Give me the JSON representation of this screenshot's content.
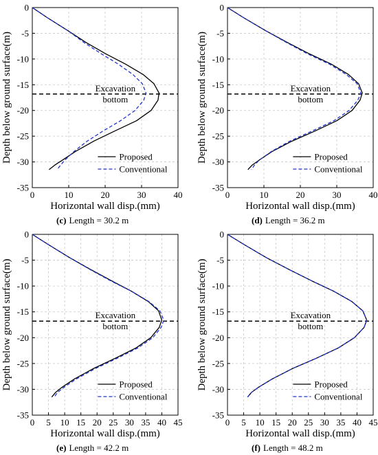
{
  "chart_data": [
    {
      "type": "line",
      "panel_label": "(c)",
      "caption": "Length = 30.2 m",
      "xlabel": "Horizontal wall disp.(mm)",
      "ylabel": "Depth below ground surface(m)",
      "xlim": [
        0,
        40
      ],
      "ylim": [
        -35,
        0
      ],
      "xticks": [
        "0",
        "10",
        "20",
        "30",
        "40"
      ],
      "yticks": [
        "0",
        "-5",
        "-10",
        "-15",
        "-20",
        "-25",
        "-30",
        "-35"
      ],
      "grid": true,
      "legend_position": "bottom-right",
      "annotation": {
        "line1": "Excavation",
        "line2": "bottom",
        "depth": -16.8
      },
      "series": [
        {
          "name": "Proposed",
          "color": "#000000",
          "dash": "solid",
          "x": [
            0,
            4.2,
            9.8,
            14.8,
            20.2,
            25.6,
            30.4,
            33.4,
            34.8,
            34.5,
            32.6,
            28.6,
            22.6,
            16.8,
            11.8,
            8.4,
            6.2,
            4.6
          ],
          "y": [
            0,
            -2,
            -4.5,
            -6.8,
            -9.0,
            -11.0,
            -13.0,
            -14.8,
            -16.6,
            -18.0,
            -20.0,
            -22.0,
            -24.0,
            -26.0,
            -28.0,
            -29.6,
            -30.6,
            -31.5
          ]
        },
        {
          "name": "Conventional",
          "color": "#1f33cc",
          "dash": "dashed",
          "x": [
            0,
            4.2,
            9.8,
            14.2,
            19.0,
            23.6,
            27.6,
            30.2,
            31.2,
            30.6,
            28.2,
            24.2,
            19.4,
            15.0,
            11.4,
            9.0,
            7.8,
            6.8
          ],
          "y": [
            0,
            -2,
            -4.5,
            -6.8,
            -9.0,
            -11.0,
            -13.0,
            -14.8,
            -16.6,
            -18.0,
            -20.0,
            -22.0,
            -24.0,
            -26.0,
            -28.0,
            -29.6,
            -30.6,
            -31.5
          ]
        }
      ]
    },
    {
      "type": "line",
      "panel_label": "(d)",
      "caption": "Length = 36.2 m",
      "xlabel": "Horizontal wall disp.(mm)",
      "ylabel": "Depth below ground surface(m)",
      "xlim": [
        0,
        40
      ],
      "ylim": [
        -35,
        0
      ],
      "xticks": [
        "0",
        "10",
        "20",
        "30",
        "40"
      ],
      "yticks": [
        "0",
        "-5",
        "-10",
        "-15",
        "-20",
        "-25",
        "-30",
        "-35"
      ],
      "grid": true,
      "legend_position": "bottom-right",
      "annotation": {
        "line1": "Excavation",
        "line2": "bottom",
        "depth": -16.8
      },
      "series": [
        {
          "name": "Proposed",
          "color": "#000000",
          "dash": "solid",
          "x": [
            0,
            4.5,
            10.5,
            16.5,
            22.5,
            28.5,
            33.2,
            36.0,
            37.0,
            36.4,
            34.2,
            30.0,
            24.0,
            17.6,
            12.2,
            8.8,
            6.8,
            5.6
          ],
          "y": [
            0,
            -2,
            -4.5,
            -6.8,
            -9.0,
            -11.0,
            -13.0,
            -14.8,
            -16.6,
            -18.0,
            -20.0,
            -22.0,
            -24.0,
            -26.0,
            -28.0,
            -29.6,
            -30.6,
            -31.5
          ]
        },
        {
          "name": "Conventional",
          "color": "#1f33cc",
          "dash": "dashed",
          "x": [
            0,
            4.5,
            10.5,
            16.2,
            22.0,
            28.0,
            32.6,
            35.6,
            36.6,
            35.8,
            33.4,
            29.2,
            23.2,
            17.0,
            12.0,
            8.8,
            7.4,
            6.6
          ],
          "y": [
            0,
            -2,
            -4.5,
            -6.8,
            -9.0,
            -11.0,
            -13.0,
            -14.8,
            -16.6,
            -18.0,
            -20.0,
            -22.0,
            -24.0,
            -26.0,
            -28.0,
            -29.6,
            -30.6,
            -31.5
          ]
        }
      ]
    },
    {
      "type": "line",
      "panel_label": "(e)",
      "caption": "Length = 42.2 m",
      "xlabel": "Horizontal wall disp.(mm)",
      "ylabel": "Depth below ground surface(m)",
      "xlim": [
        0,
        45
      ],
      "ylim": [
        -35,
        0
      ],
      "xticks": [
        "0",
        "5",
        "10",
        "15",
        "20",
        "25",
        "30",
        "35",
        "40",
        "45"
      ],
      "yticks": [
        "0",
        "-5",
        "-10",
        "-15",
        "-20",
        "-25",
        "-30",
        "-35"
      ],
      "grid": true,
      "legend_position": "bottom-right",
      "annotation": {
        "line1": "Excavation",
        "line2": "bottom",
        "depth": -16.8
      },
      "series": [
        {
          "name": "Proposed",
          "color": "#000000",
          "dash": "solid",
          "x": [
            0,
            5.0,
            11.5,
            18.0,
            24.5,
            30.6,
            35.8,
            39.0,
            40.0,
            39.2,
            36.6,
            32.0,
            25.6,
            18.8,
            13.0,
            9.2,
            7.2,
            6.0
          ],
          "y": [
            0,
            -2,
            -4.5,
            -6.8,
            -9.0,
            -11.0,
            -13.0,
            -14.8,
            -16.6,
            -18.0,
            -20.0,
            -22.0,
            -24.0,
            -26.0,
            -28.0,
            -29.6,
            -30.6,
            -31.5
          ]
        },
        {
          "name": "Conventional",
          "color": "#1f33cc",
          "dash": "dashed",
          "x": [
            0,
            5.0,
            11.5,
            17.8,
            24.2,
            30.6,
            36.0,
            39.4,
            40.6,
            39.8,
            37.2,
            32.6,
            26.2,
            19.4,
            13.6,
            9.8,
            7.8,
            6.8
          ],
          "y": [
            0,
            -2,
            -4.5,
            -6.8,
            -9.0,
            -11.0,
            -13.0,
            -14.8,
            -16.6,
            -18.0,
            -20.0,
            -22.0,
            -24.0,
            -26.0,
            -28.0,
            -29.6,
            -30.6,
            -31.5
          ]
        }
      ]
    },
    {
      "type": "line",
      "panel_label": "(f)",
      "caption": "Length = 48.2 m",
      "xlabel": "Horizontal wall disp.(mm)",
      "ylabel": "Depth below ground surface(m)",
      "xlim": [
        0,
        45
      ],
      "ylim": [
        -35,
        0
      ],
      "xticks": [
        "0",
        "5",
        "10",
        "15",
        "20",
        "25",
        "30",
        "35",
        "40",
        "45"
      ],
      "yticks": [
        "0",
        "-5",
        "-10",
        "-15",
        "-20",
        "-25",
        "-30",
        "-35"
      ],
      "grid": true,
      "legend_position": "bottom-right",
      "annotation": {
        "line1": "Excavation",
        "line2": "bottom",
        "depth": -16.8
      },
      "series": [
        {
          "name": "Proposed",
          "color": "#000000",
          "dash": "solid",
          "x": [
            0,
            5.2,
            12.0,
            19.0,
            26.0,
            32.8,
            38.4,
            41.8,
            43.0,
            42.2,
            39.2,
            34.2,
            27.4,
            20.0,
            13.8,
            9.6,
            7.4,
            6.2
          ],
          "y": [
            0,
            -2,
            -4.5,
            -6.8,
            -9.0,
            -11.0,
            -13.0,
            -14.8,
            -16.6,
            -18.0,
            -20.0,
            -22.0,
            -24.0,
            -26.0,
            -28.0,
            -29.6,
            -30.6,
            -31.5
          ]
        },
        {
          "name": "Conventional",
          "color": "#1f33cc",
          "dash": "dashed",
          "x": [
            0,
            5.2,
            12.0,
            19.0,
            26.0,
            32.8,
            38.4,
            41.8,
            43.0,
            42.2,
            39.2,
            34.2,
            27.4,
            20.0,
            13.8,
            9.6,
            7.4,
            6.2
          ],
          "y": [
            0,
            -2,
            -4.5,
            -6.8,
            -9.0,
            -11.0,
            -13.0,
            -14.8,
            -16.6,
            -18.0,
            -20.0,
            -22.0,
            -24.0,
            -26.0,
            -28.0,
            -29.6,
            -30.6,
            -31.5
          ]
        }
      ]
    }
  ]
}
